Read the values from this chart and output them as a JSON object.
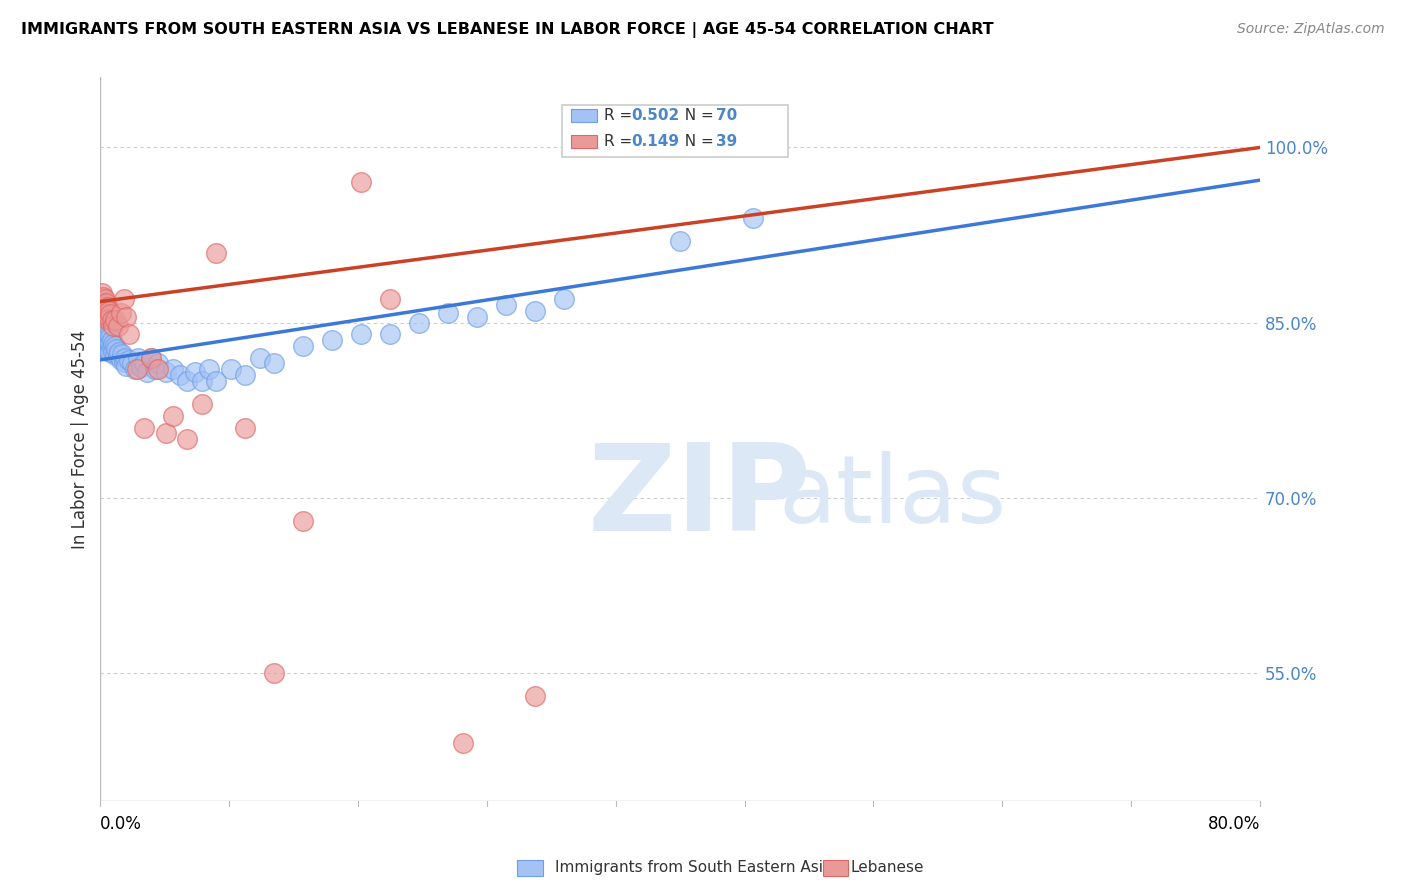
{
  "title": "IMMIGRANTS FROM SOUTH EASTERN ASIA VS LEBANESE IN LABOR FORCE | AGE 45-54 CORRELATION CHART",
  "source": "Source: ZipAtlas.com",
  "ylabel": "In Labor Force | Age 45-54",
  "right_ytick_labels": [
    "100.0%",
    "85.0%",
    "70.0%",
    "55.0%"
  ],
  "right_ytick_values": [
    1.0,
    0.85,
    0.7,
    0.55
  ],
  "legend1_R": "0.502",
  "legend1_N": "70",
  "legend2_R": "0.149",
  "legend2_N": "39",
  "legend1_label": "Immigrants from South Eastern Asia",
  "legend2_label": "Lebanese",
  "blue_color": "#a4c2f4",
  "blue_edge_color": "#6d9eeb",
  "pink_color": "#ea9999",
  "pink_edge_color": "#e06666",
  "blue_line_color": "#3c78d8",
  "pink_line_color": "#cc4125",
  "watermark_zip": "ZIP",
  "watermark_atlas": "atlas",
  "xmin": 0.0,
  "xmax": 0.8,
  "ymin": 0.44,
  "ymax": 1.06,
  "blue_line_x0": 0.0,
  "blue_line_y0": 0.818,
  "blue_line_x1": 0.8,
  "blue_line_y1": 0.972,
  "pink_line_x0": 0.0,
  "pink_line_y0": 0.868,
  "pink_line_x1": 0.8,
  "pink_line_y1": 1.0,
  "blue_points_x": [
    0.001,
    0.001,
    0.002,
    0.002,
    0.002,
    0.003,
    0.003,
    0.003,
    0.003,
    0.004,
    0.004,
    0.004,
    0.005,
    0.005,
    0.005,
    0.005,
    0.006,
    0.006,
    0.006,
    0.007,
    0.007,
    0.007,
    0.008,
    0.008,
    0.009,
    0.009,
    0.01,
    0.01,
    0.011,
    0.012,
    0.013,
    0.014,
    0.015,
    0.016,
    0.017,
    0.018,
    0.02,
    0.022,
    0.024,
    0.026,
    0.028,
    0.03,
    0.032,
    0.035,
    0.038,
    0.04,
    0.045,
    0.05,
    0.055,
    0.06,
    0.065,
    0.07,
    0.075,
    0.08,
    0.09,
    0.1,
    0.11,
    0.12,
    0.14,
    0.16,
    0.18,
    0.2,
    0.22,
    0.24,
    0.26,
    0.28,
    0.3,
    0.32,
    0.4,
    0.45
  ],
  "blue_points_y": [
    0.845,
    0.838,
    0.85,
    0.843,
    0.836,
    0.848,
    0.841,
    0.836,
    0.83,
    0.845,
    0.838,
    0.831,
    0.843,
    0.837,
    0.831,
    0.826,
    0.84,
    0.833,
    0.826,
    0.838,
    0.832,
    0.825,
    0.835,
    0.828,
    0.832,
    0.825,
    0.83,
    0.822,
    0.827,
    0.822,
    0.825,
    0.818,
    0.823,
    0.816,
    0.82,
    0.813,
    0.818,
    0.815,
    0.81,
    0.82,
    0.812,
    0.815,
    0.808,
    0.82,
    0.81,
    0.815,
    0.808,
    0.81,
    0.805,
    0.8,
    0.808,
    0.8,
    0.81,
    0.8,
    0.81,
    0.805,
    0.82,
    0.815,
    0.83,
    0.835,
    0.84,
    0.84,
    0.85,
    0.858,
    0.855,
    0.865,
    0.86,
    0.87,
    0.92,
    0.94
  ],
  "pink_points_x": [
    0.001,
    0.001,
    0.002,
    0.002,
    0.003,
    0.003,
    0.003,
    0.004,
    0.004,
    0.004,
    0.005,
    0.005,
    0.006,
    0.006,
    0.007,
    0.008,
    0.009,
    0.01,
    0.012,
    0.014,
    0.016,
    0.018,
    0.02,
    0.025,
    0.03,
    0.035,
    0.04,
    0.045,
    0.05,
    0.06,
    0.07,
    0.08,
    0.1,
    0.12,
    0.14,
    0.18,
    0.2,
    0.25,
    0.3
  ],
  "pink_points_y": [
    0.875,
    0.868,
    0.872,
    0.865,
    0.87,
    0.863,
    0.857,
    0.867,
    0.86,
    0.853,
    0.863,
    0.856,
    0.86,
    0.853,
    0.857,
    0.852,
    0.847,
    0.852,
    0.847,
    0.858,
    0.87,
    0.855,
    0.84,
    0.81,
    0.76,
    0.82,
    0.81,
    0.755,
    0.77,
    0.75,
    0.78,
    0.91,
    0.76,
    0.55,
    0.68,
    0.97,
    0.87,
    0.49,
    0.53
  ]
}
